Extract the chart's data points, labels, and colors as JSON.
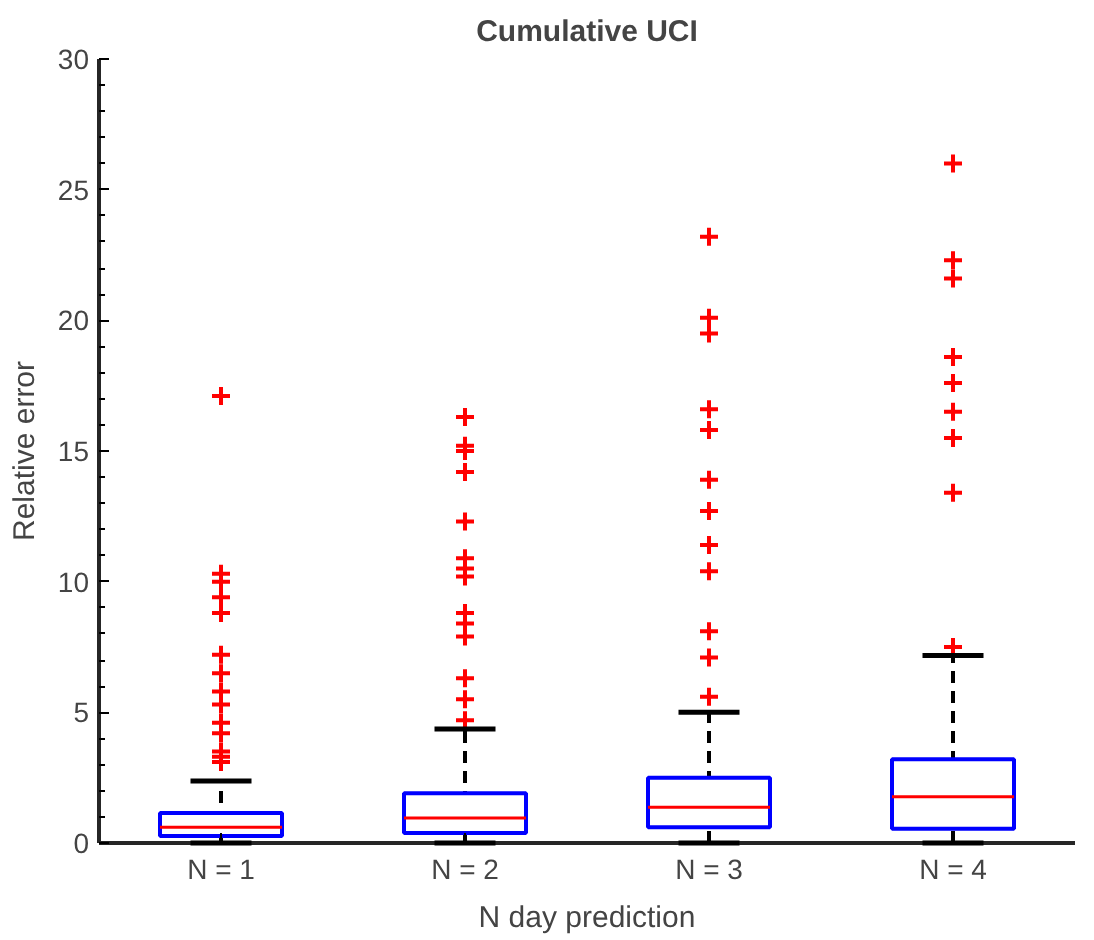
{
  "chart_data": {
    "type": "box",
    "title": "Cumulative UCI",
    "xlabel": "N day prediction",
    "ylabel": "Relative error",
    "categories": [
      "N = 1",
      "N = 2",
      "N = 3",
      "N = 4"
    ],
    "color": "#0000ff",
    "boxes": [
      {
        "low": 0,
        "q1": 0.27,
        "median": 0.6,
        "q3": 1.15,
        "high": 2.37,
        "outliers": [
          17.1,
          10.3,
          10.0,
          9.4,
          8.8,
          7.2,
          6.5,
          5.8,
          5.3,
          4.6,
          4.2,
          3.5,
          3.3,
          3.1
        ]
      },
      {
        "low": 0,
        "q1": 0.38,
        "median": 0.96,
        "q3": 1.9,
        "high": 4.36,
        "outliers": [
          16.3,
          15.2,
          15.0,
          14.2,
          12.3,
          10.9,
          10.5,
          10.2,
          8.8,
          8.4,
          7.9,
          6.3,
          5.5,
          4.7
        ]
      },
      {
        "low": 0,
        "q1": 0.6,
        "median": 1.37,
        "q3": 2.5,
        "high": 5.0,
        "outliers": [
          23.2,
          20.1,
          19.5,
          16.6,
          15.8,
          13.9,
          12.7,
          11.4,
          10.4,
          8.1,
          7.1,
          5.6
        ]
      },
      {
        "low": 0,
        "q1": 0.55,
        "median": 1.77,
        "q3": 3.2,
        "high": 7.17,
        "outliers": [
          26.0,
          22.3,
          21.6,
          18.6,
          17.6,
          16.5,
          15.5,
          13.4,
          7.5
        ]
      }
    ],
    "ylim": [
      0,
      30
    ],
    "yticks": [
      0,
      5,
      10,
      15,
      20,
      25,
      30
    ],
    "grid": false,
    "marker": "cross"
  }
}
